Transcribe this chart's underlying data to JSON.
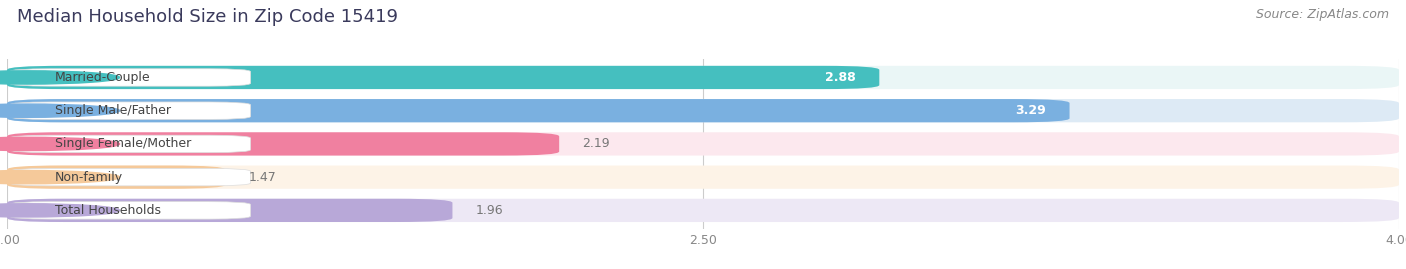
{
  "title": "Median Household Size in Zip Code 15419",
  "source": "Source: ZipAtlas.com",
  "categories": [
    "Married-Couple",
    "Single Male/Father",
    "Single Female/Mother",
    "Non-family",
    "Total Households"
  ],
  "values": [
    2.88,
    3.29,
    2.19,
    1.47,
    1.96
  ],
  "bar_colors": [
    "#45bfbf",
    "#7ab0e0",
    "#f080a0",
    "#f5c99a",
    "#b8a8d8"
  ],
  "bar_bg_colors": [
    "#eaf6f6",
    "#ddeaf5",
    "#fce8ee",
    "#fdf3e7",
    "#ede8f5"
  ],
  "label_inside": [
    true,
    true,
    false,
    false,
    false
  ],
  "xmin": 1.0,
  "xmax": 4.0,
  "xticks": [
    1.0,
    2.5,
    4.0
  ],
  "title_fontsize": 13,
  "source_fontsize": 9,
  "bar_label_fontsize": 9,
  "category_fontsize": 9,
  "background_color": "#ffffff"
}
